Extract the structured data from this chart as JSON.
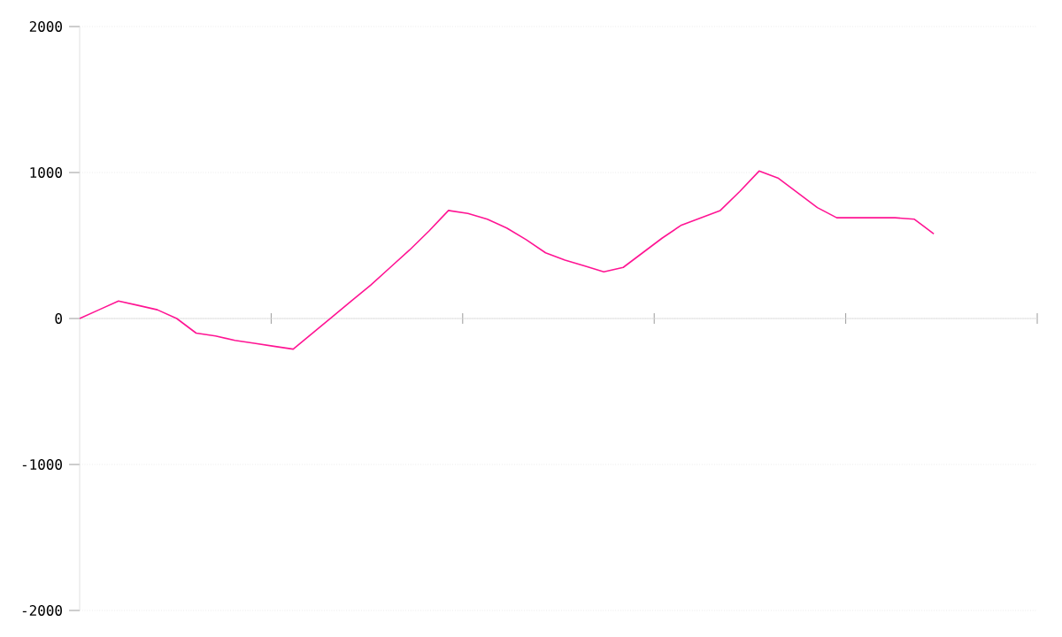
{
  "chart_data": {
    "type": "line",
    "color": "#ff1493",
    "categories": [
      null,
      null,
      null,
      null,
      null,
      null,
      null,
      null,
      null,
      null,
      null,
      null,
      null,
      null,
      null,
      null,
      null,
      null,
      null,
      null,
      null,
      null,
      null,
      null,
      null,
      null,
      null,
      null,
      null,
      null,
      null,
      null,
      null,
      null,
      null,
      null,
      null,
      null,
      null,
      null,
      null,
      null,
      null,
      null,
      null
    ],
    "values": [
      0,
      60,
      120,
      90,
      60,
      0,
      -100,
      -120,
      -150,
      -170,
      -190,
      -210,
      -100,
      10,
      120,
      230,
      350,
      470,
      600,
      740,
      720,
      680,
      620,
      540,
      450,
      400,
      360,
      320,
      350,
      450,
      550,
      640,
      690,
      740,
      870,
      1010,
      960,
      860,
      760,
      690,
      690,
      690,
      690,
      680,
      580
    ],
    "ylim": [
      -2000,
      2000
    ],
    "yticks": [
      -2000,
      -1000,
      0,
      1000,
      2000
    ],
    "grid": "y",
    "marker": "none",
    "line_style": "solid"
  }
}
